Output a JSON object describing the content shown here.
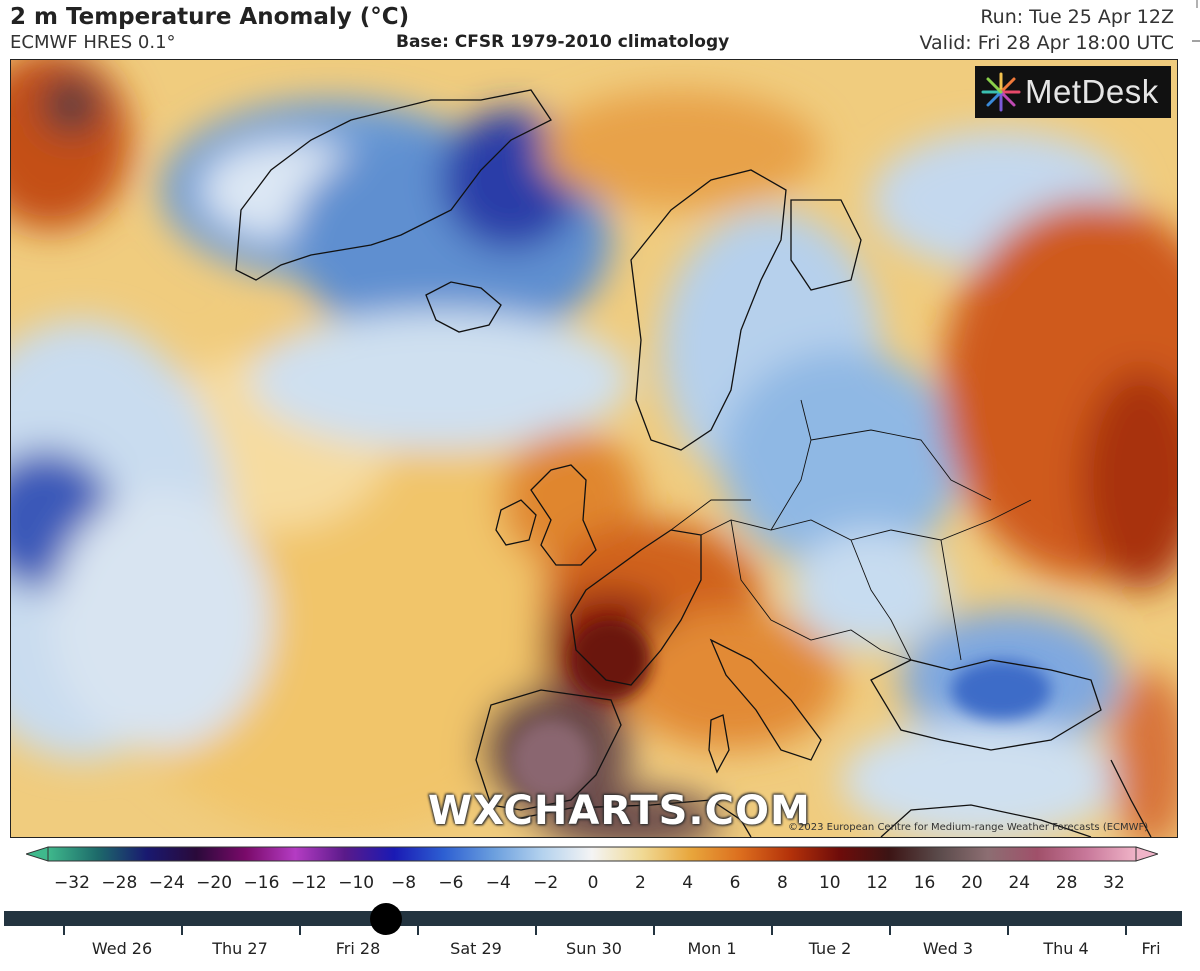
{
  "header": {
    "title": "2 m Temperature Anomaly (°C)",
    "model": "ECMWF HRES 0.1°",
    "base": "Base: CFSR 1979-2010 climatology",
    "run": "Run: Tue 25 Apr 12Z",
    "valid": "Valid: Fri 28 Apr 18:00 UTC"
  },
  "logo": {
    "text": "MetDesk",
    "icon": "starburst-logo-icon"
  },
  "watermark": "WXCHARTS.COM",
  "credit": "©2023 European Centre for Medium-range Weather Forecasts (ECMWF)",
  "colorbar": {
    "ticks": [
      "−32",
      "−28",
      "−24",
      "−20",
      "−16",
      "−12",
      "−10",
      "−8",
      "−6",
      "−4",
      "−2",
      "0",
      "2",
      "4",
      "6",
      "8",
      "10",
      "12",
      "16",
      "20",
      "24",
      "28",
      "32"
    ],
    "colors": [
      "#3fb98c",
      "#1d6a6a",
      "#191970",
      "#2a0a3a",
      "#7a0a6a",
      "#b43cc3",
      "#5a1a8a",
      "#1a1ab4",
      "#2d5fd2",
      "#6a9ede",
      "#b4d2ee",
      "#f4f4f4",
      "#f0da96",
      "#e8a63c",
      "#dc6e1e",
      "#b4320a",
      "#6e0c0a",
      "#3c1414",
      "#5a4a4a",
      "#8c6e72",
      "#a0506a",
      "#c8789a",
      "#f0b4c8"
    ]
  },
  "timeline": {
    "days": [
      "Wed 26",
      "Thu 27",
      "Fri 28",
      "Sat 29",
      "Sun 30",
      "Mon 1",
      "Tue 2",
      "Wed 3",
      "Thu 4",
      "Fri"
    ],
    "current": "Fri 28"
  }
}
